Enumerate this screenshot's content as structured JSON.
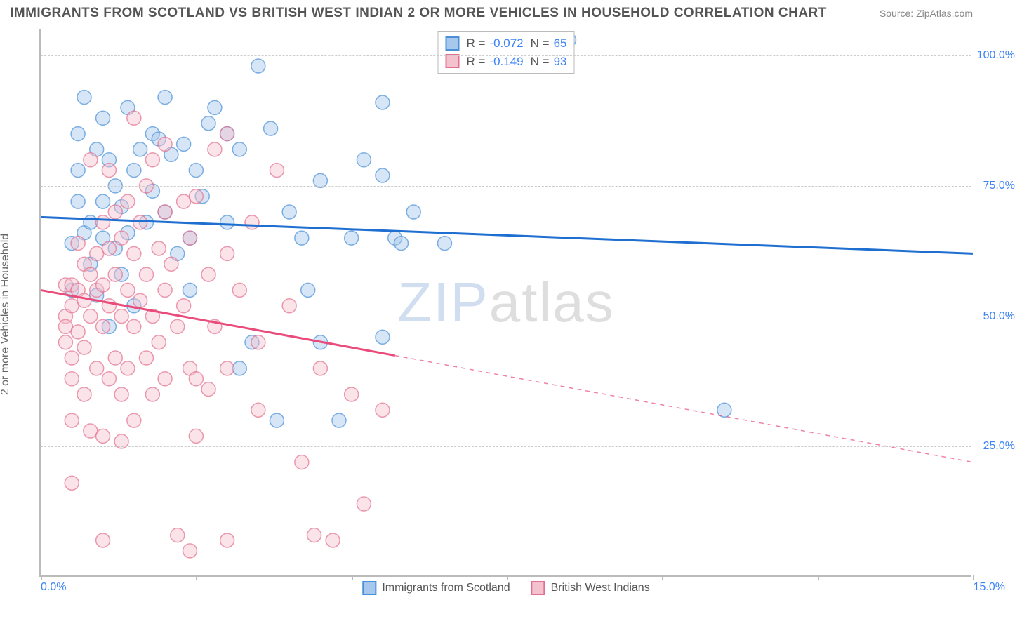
{
  "title": "IMMIGRANTS FROM SCOTLAND VS BRITISH WEST INDIAN 2 OR MORE VEHICLES IN HOUSEHOLD CORRELATION CHART",
  "source": "Source: ZipAtlas.com",
  "ylabel": "2 or more Vehicles in Household",
  "watermark_a": "ZIP",
  "watermark_b": "atlas",
  "chart": {
    "type": "scatter",
    "xlim": [
      0,
      15
    ],
    "ylim": [
      0,
      105
    ],
    "ytick_positions": [
      25,
      50,
      75,
      100
    ],
    "ytick_labels": [
      "25.0%",
      "50.0%",
      "75.0%",
      "100.0%"
    ],
    "xtick_labels": {
      "start": "0.0%",
      "end": "15.0%"
    },
    "xtick_marks": [
      0,
      2.5,
      5,
      7.5,
      10,
      12.5,
      15
    ],
    "background": "#ffffff",
    "grid_color": "#cccccc",
    "axis_color": "#bbbbbb",
    "text_color": "#666666",
    "value_color": "#3b82f6",
    "point_radius": 10,
    "point_opacity": 0.45,
    "series": [
      {
        "name": "Immigrants from Scotland",
        "color_fill": "#a6c8ec",
        "color_stroke": "#4a90d9",
        "line_color": "#1f6fd0",
        "R": "-0.072",
        "N": "65",
        "trend": {
          "x1": 0,
          "y1": 69,
          "x2": 15,
          "y2": 62,
          "solid_until_x": 15
        },
        "points": [
          [
            0.5,
            64
          ],
          [
            0.5,
            55
          ],
          [
            0.6,
            78
          ],
          [
            0.6,
            72
          ],
          [
            0.7,
            92
          ],
          [
            0.7,
            66
          ],
          [
            0.8,
            60
          ],
          [
            0.8,
            68
          ],
          [
            0.9,
            82
          ],
          [
            0.9,
            54
          ],
          [
            1.0,
            72
          ],
          [
            1.0,
            65
          ],
          [
            1.1,
            80
          ],
          [
            1.1,
            48
          ],
          [
            1.2,
            75
          ],
          [
            1.2,
            63
          ],
          [
            1.3,
            71
          ],
          [
            1.3,
            58
          ],
          [
            1.4,
            90
          ],
          [
            1.4,
            66
          ],
          [
            1.5,
            78
          ],
          [
            1.5,
            52
          ],
          [
            1.6,
            82
          ],
          [
            1.7,
            68
          ],
          [
            1.8,
            74
          ],
          [
            1.8,
            85
          ],
          [
            1.9,
            84
          ],
          [
            2.0,
            92
          ],
          [
            2.0,
            70
          ],
          [
            2.1,
            81
          ],
          [
            2.2,
            62
          ],
          [
            2.3,
            83
          ],
          [
            2.4,
            65
          ],
          [
            2.4,
            55
          ],
          [
            2.5,
            78
          ],
          [
            2.6,
            73
          ],
          [
            2.7,
            87
          ],
          [
            2.8,
            90
          ],
          [
            3.0,
            85
          ],
          [
            3.0,
            68
          ],
          [
            3.2,
            82
          ],
          [
            3.2,
            40
          ],
          [
            3.4,
            45
          ],
          [
            3.5,
            98
          ],
          [
            3.7,
            86
          ],
          [
            3.8,
            30
          ],
          [
            4.0,
            70
          ],
          [
            4.2,
            65
          ],
          [
            4.3,
            55
          ],
          [
            4.5,
            76
          ],
          [
            4.5,
            45
          ],
          [
            4.8,
            30
          ],
          [
            5.0,
            65
          ],
          [
            5.2,
            80
          ],
          [
            5.5,
            77
          ],
          [
            5.5,
            46
          ],
          [
            5.5,
            91
          ],
          [
            5.7,
            65
          ],
          [
            5.8,
            64
          ],
          [
            6.0,
            70
          ],
          [
            6.5,
            64
          ],
          [
            8.5,
            103
          ],
          [
            11.0,
            32
          ],
          [
            1.0,
            88
          ],
          [
            0.6,
            85
          ]
        ]
      },
      {
        "name": "British West Indians",
        "color_fill": "#f4c2ce",
        "color_stroke": "#e2718f",
        "line_color": "#e94b7a",
        "R": "-0.149",
        "N": "93",
        "trend": {
          "x1": 0,
          "y1": 55,
          "x2": 15,
          "y2": 22,
          "solid_until_x": 5.7
        },
        "points": [
          [
            0.4,
            56
          ],
          [
            0.4,
            50
          ],
          [
            0.4,
            48
          ],
          [
            0.4,
            45
          ],
          [
            0.5,
            56
          ],
          [
            0.5,
            52
          ],
          [
            0.5,
            42
          ],
          [
            0.5,
            38
          ],
          [
            0.5,
            30
          ],
          [
            0.5,
            18
          ],
          [
            0.6,
            55
          ],
          [
            0.6,
            47
          ],
          [
            0.6,
            64
          ],
          [
            0.7,
            60
          ],
          [
            0.7,
            53
          ],
          [
            0.7,
            44
          ],
          [
            0.7,
            35
          ],
          [
            0.8,
            80
          ],
          [
            0.8,
            58
          ],
          [
            0.8,
            50
          ],
          [
            0.8,
            28
          ],
          [
            0.9,
            62
          ],
          [
            0.9,
            55
          ],
          [
            0.9,
            40
          ],
          [
            1.0,
            68
          ],
          [
            1.0,
            56
          ],
          [
            1.0,
            48
          ],
          [
            1.0,
            27
          ],
          [
            1.0,
            7
          ],
          [
            1.1,
            78
          ],
          [
            1.1,
            63
          ],
          [
            1.1,
            52
          ],
          [
            1.1,
            38
          ],
          [
            1.2,
            70
          ],
          [
            1.2,
            58
          ],
          [
            1.2,
            42
          ],
          [
            1.3,
            65
          ],
          [
            1.3,
            50
          ],
          [
            1.3,
            35
          ],
          [
            1.3,
            26
          ],
          [
            1.4,
            72
          ],
          [
            1.4,
            55
          ],
          [
            1.4,
            40
          ],
          [
            1.5,
            88
          ],
          [
            1.5,
            62
          ],
          [
            1.5,
            48
          ],
          [
            1.5,
            30
          ],
          [
            1.6,
            68
          ],
          [
            1.6,
            53
          ],
          [
            1.7,
            75
          ],
          [
            1.7,
            58
          ],
          [
            1.7,
            42
          ],
          [
            1.8,
            80
          ],
          [
            1.8,
            50
          ],
          [
            1.8,
            35
          ],
          [
            1.9,
            63
          ],
          [
            1.9,
            45
          ],
          [
            2.0,
            83
          ],
          [
            2.0,
            70
          ],
          [
            2.0,
            55
          ],
          [
            2.0,
            38
          ],
          [
            2.1,
            60
          ],
          [
            2.2,
            48
          ],
          [
            2.2,
            8
          ],
          [
            2.3,
            72
          ],
          [
            2.3,
            52
          ],
          [
            2.4,
            65
          ],
          [
            2.4,
            40
          ],
          [
            2.4,
            5
          ],
          [
            2.5,
            73
          ],
          [
            2.5,
            38
          ],
          [
            2.5,
            27
          ],
          [
            2.7,
            58
          ],
          [
            2.7,
            36
          ],
          [
            2.8,
            82
          ],
          [
            2.8,
            48
          ],
          [
            3.0,
            85
          ],
          [
            3.0,
            62
          ],
          [
            3.0,
            40
          ],
          [
            3.0,
            7
          ],
          [
            3.2,
            55
          ],
          [
            3.4,
            68
          ],
          [
            3.5,
            45
          ],
          [
            3.5,
            32
          ],
          [
            3.8,
            78
          ],
          [
            4.0,
            52
          ],
          [
            4.2,
            22
          ],
          [
            4.4,
            8
          ],
          [
            4.5,
            40
          ],
          [
            4.7,
            7
          ],
          [
            5.0,
            35
          ],
          [
            5.2,
            14
          ],
          [
            5.5,
            32
          ]
        ]
      }
    ]
  }
}
